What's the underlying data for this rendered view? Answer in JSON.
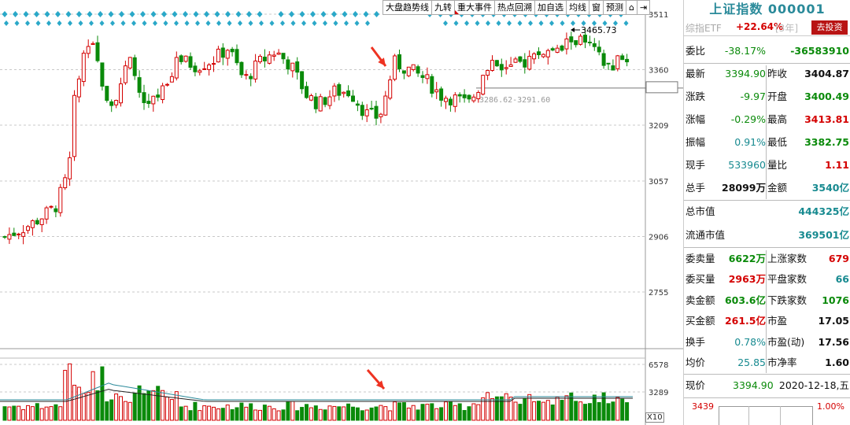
{
  "toolbar": {
    "items": [
      "大盘趋势线",
      "九转",
      "重大事件",
      "热点回溯",
      "加自选",
      "均线",
      "窗",
      "预测",
      "⌂",
      "⇥"
    ]
  },
  "price_axis": {
    "labels": [
      "3511",
      "3360",
      "3310",
      "3209",
      "3057",
      "2906",
      "2755"
    ]
  },
  "volume_axis": {
    "labels": [
      "6578",
      "3289"
    ],
    "unit_badge": "X10"
  },
  "annotations": {
    "high_label": "3465.73",
    "range_label": "3286.62-3291.60"
  },
  "panel": {
    "title": "上证指数 000001",
    "etf": {
      "name": "综指ETF",
      "pct": "+22.64%",
      "period": "[3年]",
      "button": "去投资"
    },
    "rows": [
      {
        "l1": "委比",
        "v1": "-38.17%",
        "l2": "",
        "v2": "-36583910"
      },
      {
        "l1": "最新",
        "v1": "3394.90",
        "l2": "昨收",
        "v2": "3404.87"
      },
      {
        "l1": "涨跌",
        "v1": "-9.97",
        "l2": "开盘",
        "v2": "3400.49"
      },
      {
        "l1": "涨幅",
        "v1": "-0.29%",
        "l2": "最高",
        "v2": "3413.81"
      },
      {
        "l1": "振幅",
        "v1": "0.91%",
        "l2": "最低",
        "v2": "3382.75"
      },
      {
        "l1": "现手",
        "v1": "533960",
        "l2": "量比",
        "v2": "1.11"
      },
      {
        "l1": "总手",
        "v1": "28099万",
        "l2": "金额",
        "v2": "3540亿"
      }
    ],
    "market_cap": [
      {
        "label": "总市值",
        "value": "444325亿"
      },
      {
        "label": "流通市值",
        "value": "369501亿"
      }
    ],
    "orders": [
      {
        "l1": "委卖量",
        "v1": "6622万",
        "l2": "上涨家数",
        "v2": "679"
      },
      {
        "l1": "委买量",
        "v1": "2963万",
        "l2": "平盘家数",
        "v2": "66"
      },
      {
        "l1": "卖金额",
        "v1": "603.6亿",
        "l2": "下跌家数",
        "v2": "1076"
      },
      {
        "l1": "买金额",
        "v1": "261.5亿",
        "l2": "市盈",
        "v2": "17.05"
      },
      {
        "l1": "换手",
        "v1": "0.78%",
        "l2": "市盈(动)",
        "v2": "17.56"
      },
      {
        "l1": "均价",
        "v1": "25.85",
        "l2": "市净率",
        "v2": "1.60"
      }
    ],
    "bottom": {
      "label": "现价",
      "price": "3394.90",
      "date": "2020-12-18,五",
      "mini_high": "3439",
      "mini_pct": "1.00%"
    }
  },
  "colors": {
    "up": "#d40000",
    "down": "#0a8a0a",
    "diamond": "#2aa8c8",
    "grid": "#c8c8c8"
  }
}
